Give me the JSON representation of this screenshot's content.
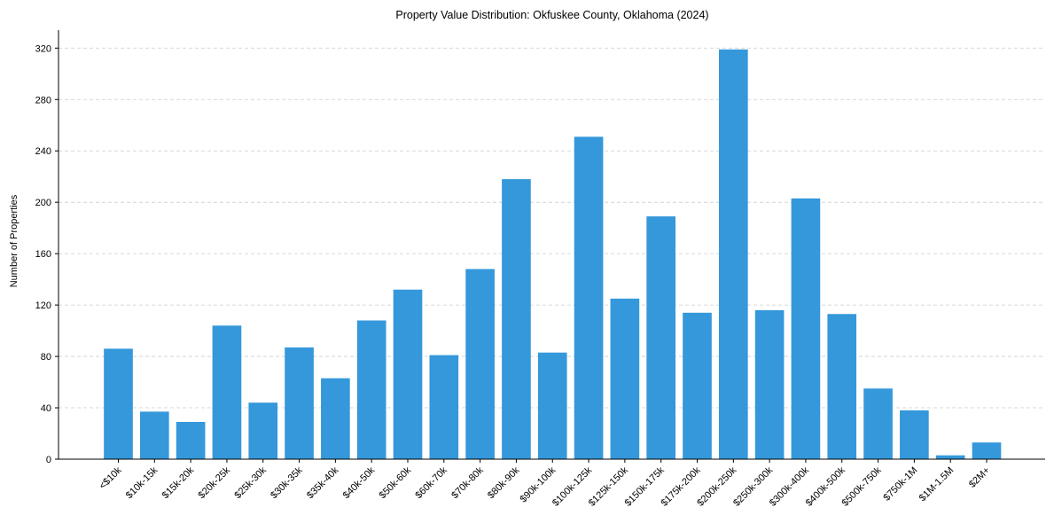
{
  "chart_data": {
    "type": "bar",
    "title": "Property Value Distribution: Okfuskee County, Oklahoma (2024)",
    "xlabel": "",
    "ylabel": "Number of Properties",
    "categories": [
      "<$10k",
      "$10k-15k",
      "$15k-20k",
      "$20k-25k",
      "$25k-30k",
      "$30k-35k",
      "$35k-40k",
      "$40k-50k",
      "$50k-60k",
      "$60k-70k",
      "$70k-80k",
      "$80k-90k",
      "$90k-100k",
      "$100k-125k",
      "$125k-150k",
      "$150k-175k",
      "$175k-200k",
      "$200k-250k",
      "$250k-300k",
      "$300k-400k",
      "$400k-500k",
      "$500k-750k",
      "$750k-1M",
      "$1M-1.5M",
      "$2M+"
    ],
    "values": [
      86,
      37,
      29,
      104,
      44,
      87,
      63,
      108,
      132,
      81,
      148,
      218,
      83,
      251,
      125,
      189,
      114,
      319,
      116,
      203,
      113,
      55,
      38,
      3,
      13
    ],
    "ylim": [
      0,
      334
    ],
    "yticks": [
      0,
      40,
      80,
      120,
      160,
      200,
      240,
      280,
      320
    ],
    "grid": "y",
    "bar_color": "#3498db",
    "legend": "none"
  }
}
